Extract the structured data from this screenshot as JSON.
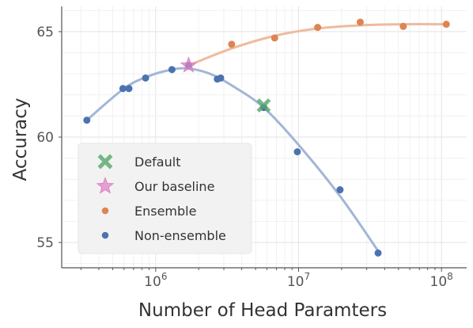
{
  "chart_data": {
    "type": "scatter",
    "xlabel": "Number of Head Paramters",
    "ylabel": "Accuracy",
    "xscale": "log",
    "xlim": [
      220000,
      150000000
    ],
    "ylim": [
      53.8,
      66.2
    ],
    "x_ticks": [
      {
        "value": 1000000,
        "base": "10",
        "exp": "6"
      },
      {
        "value": 10000000,
        "base": "10",
        "exp": "7"
      },
      {
        "value": 100000000,
        "base": "10",
        "exp": "8"
      }
    ],
    "y_ticks": [
      55,
      60,
      65
    ],
    "grid": true,
    "legend": {
      "position": "bottom-left",
      "entries": [
        {
          "label": "Default",
          "marker": "x",
          "color": "#55a868"
        },
        {
          "label": "Our baseline",
          "marker": "star",
          "color": "#dd84c4"
        },
        {
          "label": "Ensemble",
          "marker": "o",
          "color": "#dd8452"
        },
        {
          "label": "Non-ensemble",
          "marker": "o",
          "color": "#4c72b0"
        }
      ]
    },
    "series": [
      {
        "name": "Ensemble",
        "marker": "o",
        "color": "#dd8452",
        "points": [
          {
            "x": 1700000,
            "y": 63.4
          },
          {
            "x": 3400000,
            "y": 64.4
          },
          {
            "x": 6800000,
            "y": 64.7
          },
          {
            "x": 13600000,
            "y": 65.2
          },
          {
            "x": 27000000,
            "y": 65.45
          },
          {
            "x": 54000000,
            "y": 65.25
          },
          {
            "x": 108000000,
            "y": 65.35
          }
        ],
        "trend": {
          "color": "#eebb9e",
          "points": [
            {
              "x": 1700000,
              "y": 63.4
            },
            {
              "x": 3400000,
              "y": 64.2
            },
            {
              "x": 6800000,
              "y": 64.8
            },
            {
              "x": 13600000,
              "y": 65.15
            },
            {
              "x": 27000000,
              "y": 65.3
            },
            {
              "x": 54000000,
              "y": 65.35
            },
            {
              "x": 108000000,
              "y": 65.35
            }
          ]
        }
      },
      {
        "name": "Non-ensemble",
        "marker": "o",
        "color": "#4c72b0",
        "points": [
          {
            "x": 330000,
            "y": 60.8
          },
          {
            "x": 590000,
            "y": 62.3
          },
          {
            "x": 650000,
            "y": 62.3
          },
          {
            "x": 850000,
            "y": 62.8
          },
          {
            "x": 1300000,
            "y": 63.2
          },
          {
            "x": 1700000,
            "y": 63.4
          },
          {
            "x": 2700000,
            "y": 62.75
          },
          {
            "x": 2850000,
            "y": 62.8
          },
          {
            "x": 5700000,
            "y": 61.4
          },
          {
            "x": 9800000,
            "y": 59.3
          },
          {
            "x": 19500000,
            "y": 57.5
          },
          {
            "x": 36000000,
            "y": 54.5
          }
        ],
        "trend": {
          "color": "#a2b6d6",
          "points": [
            {
              "x": 330000,
              "y": 60.8
            },
            {
              "x": 600000,
              "y": 62.3
            },
            {
              "x": 900000,
              "y": 62.9
            },
            {
              "x": 1300000,
              "y": 63.2
            },
            {
              "x": 1700000,
              "y": 63.25
            },
            {
              "x": 2400000,
              "y": 63.0
            },
            {
              "x": 3500000,
              "y": 62.4
            },
            {
              "x": 5700000,
              "y": 61.4
            },
            {
              "x": 9800000,
              "y": 59.7
            },
            {
              "x": 19500000,
              "y": 57.2
            },
            {
              "x": 36000000,
              "y": 54.6
            }
          ]
        }
      },
      {
        "name": "Default",
        "marker": "x",
        "color": "#55a868",
        "points": [
          {
            "x": 5700000,
            "y": 61.5
          }
        ]
      },
      {
        "name": "Our baseline",
        "marker": "star",
        "color": "#dd84c4",
        "points": [
          {
            "x": 1700000,
            "y": 63.4
          }
        ]
      }
    ]
  }
}
